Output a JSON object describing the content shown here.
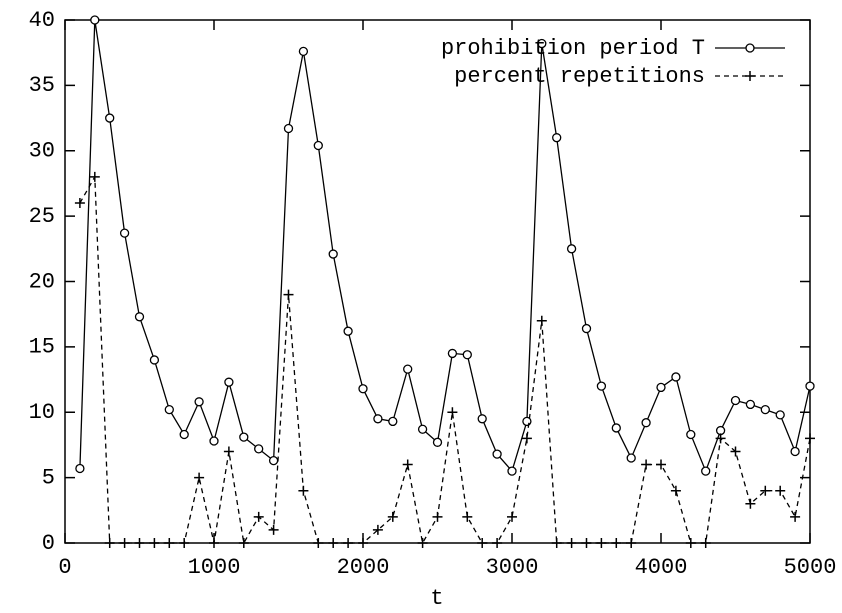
{
  "chart_data": {
    "type": "line",
    "xlabel": "t",
    "x": [
      100,
      200,
      300,
      400,
      500,
      600,
      700,
      800,
      900,
      1000,
      1100,
      1200,
      1300,
      1400,
      1500,
      1600,
      1700,
      1800,
      1900,
      2000,
      2100,
      2200,
      2300,
      2400,
      2500,
      2600,
      2700,
      2800,
      2900,
      3000,
      3100,
      3200,
      3300,
      3400,
      3500,
      3600,
      3700,
      3800,
      3900,
      4000,
      4100,
      4200,
      4300,
      4400,
      4500,
      4600,
      4700,
      4800,
      4900,
      5000
    ],
    "series": [
      {
        "name": "prohibition period T",
        "color": "#000000",
        "marker": "circle",
        "dashed": false,
        "values": [
          5.7,
          40,
          32.5,
          23.7,
          17.3,
          14,
          10.2,
          8.3,
          10.8,
          7.8,
          12.3,
          8.1,
          7.2,
          6.3,
          31.7,
          37.6,
          30.4,
          22.1,
          16.2,
          11.8,
          9.5,
          9.3,
          13.3,
          8.7,
          7.7,
          14.5,
          14.4,
          9.5,
          6.8,
          5.5,
          9.3,
          38.2,
          31,
          22.5,
          16.4,
          12,
          8.8,
          6.5,
          9.2,
          11.9,
          12.7,
          8.3,
          5.5,
          8.6,
          10.9,
          10.6,
          10.2,
          9.8,
          7,
          12
        ]
      },
      {
        "name": "percent repetitions",
        "color": "#000000",
        "marker": "plus",
        "dashed": true,
        "values": [
          26,
          28,
          0,
          0,
          0,
          0,
          0,
          0,
          5,
          0,
          7,
          0,
          2,
          1,
          19,
          4,
          0,
          0,
          0,
          0,
          1,
          2,
          6,
          0,
          2,
          10,
          2,
          0,
          0,
          2,
          8,
          17,
          0,
          0,
          0,
          0,
          0,
          0,
          6,
          6,
          4,
          0,
          0,
          8,
          7,
          3,
          4,
          4,
          2,
          8
        ]
      }
    ],
    "xlim": [
      0,
      5000
    ],
    "xticks": [
      0,
      1000,
      2000,
      3000,
      4000,
      5000
    ],
    "ylim": [
      0,
      40
    ],
    "yticks": [
      0,
      5,
      10,
      15,
      20,
      25,
      30,
      35,
      40
    ],
    "legend": "top right"
  }
}
